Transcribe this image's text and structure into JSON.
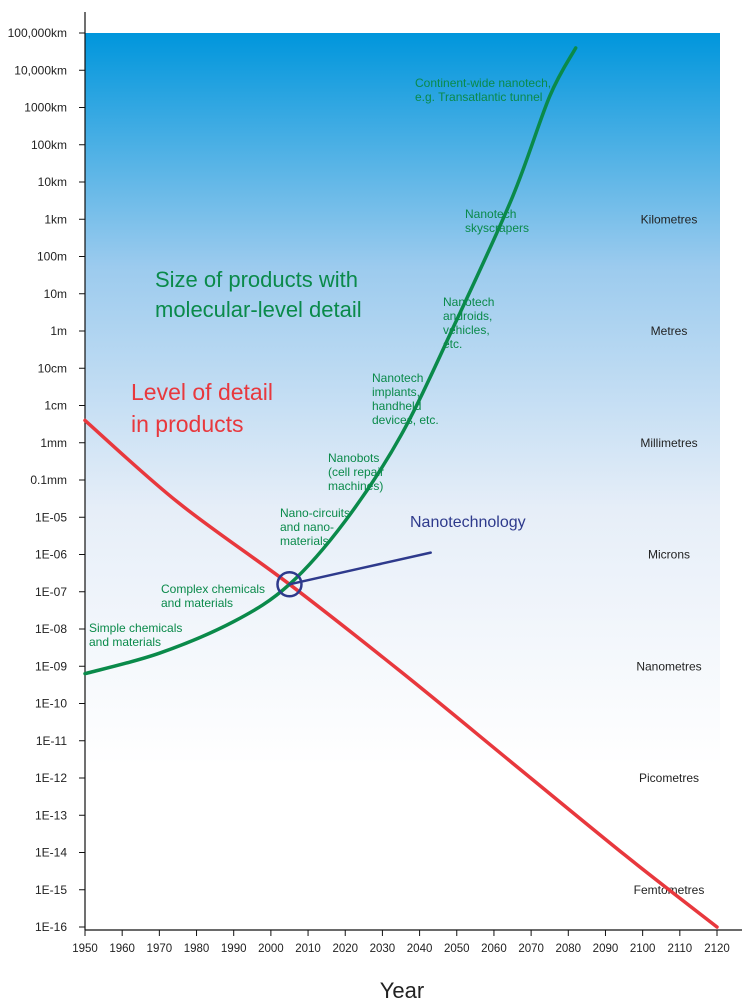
{
  "chart_data": {
    "type": "line",
    "xlabel": "Year",
    "x_ticks": [
      1950,
      1960,
      1970,
      1980,
      1990,
      2000,
      2010,
      2020,
      2030,
      2040,
      2050,
      2060,
      2070,
      2080,
      2090,
      2100,
      2110,
      2120
    ],
    "xlim": [
      1950,
      2120
    ],
    "y_scale": "log",
    "ylim_exponent_m": [
      -16,
      8
    ],
    "y_ticks": [
      "100,000km",
      "10,000km",
      "1000km",
      "100km",
      "10km",
      "1km",
      "100m",
      "10m",
      "1m",
      "10cm",
      "1cm",
      "1mm",
      "0.1mm",
      "1E-05",
      "1E-06",
      "1E-07",
      "1E-08",
      "1E-09",
      "1E-10",
      "1E-11",
      "1E-12",
      "1E-13",
      "1E-14",
      "1E-15",
      "1E-16"
    ],
    "scale_labels": [
      {
        "text": "Kilometres",
        "at": 3
      },
      {
        "text": "Metres",
        "at": 0
      },
      {
        "text": "Millimetres",
        "at": -3
      },
      {
        "text": "Microns",
        "at": -6
      },
      {
        "text": "Nanometres",
        "at": -9
      },
      {
        "text": "Picometres",
        "at": -12
      },
      {
        "text": "Femtometres",
        "at": -15
      }
    ],
    "series": [
      {
        "name": "Size of products with molecular-level detail",
        "color": "#0a8a4a",
        "points": [
          [
            1950,
            -9.2
          ],
          [
            1970,
            -8.65
          ],
          [
            1990,
            -7.8
          ],
          [
            2005,
            -6.8
          ],
          [
            2020,
            -5.1
          ],
          [
            2035,
            -2.8
          ],
          [
            2050,
            0.3
          ],
          [
            2065,
            3.6
          ],
          [
            2075,
            6.3
          ],
          [
            2082,
            7.6
          ]
        ]
      },
      {
        "name": "Level of detail in products",
        "color": "#e8383d",
        "points": [
          [
            1950,
            -2.4
          ],
          [
            1975,
            -4.6
          ],
          [
            2005,
            -6.8
          ],
          [
            2035,
            -9.15
          ],
          [
            2065,
            -11.6
          ],
          [
            2095,
            -14.05
          ],
          [
            2120,
            -16
          ]
        ]
      },
      {
        "name": "Nanotechnology",
        "color": "#2e3a8c",
        "points": [
          [
            2005,
            -6.8
          ],
          [
            2043,
            -5.95
          ]
        ]
      }
    ],
    "marker": {
      "x": 2005,
      "y": -6.8,
      "label": "Nanotechnology"
    },
    "annotations": [
      {
        "lines": [
          "Continent-wide nanotech,",
          "e.g. Transatlantic tunnel"
        ]
      },
      {
        "lines": [
          "Nanotech",
          "skyscrapers"
        ]
      },
      {
        "lines": [
          "Nanotech",
          "androids,",
          "vehicles,",
          "etc."
        ]
      },
      {
        "lines": [
          "Nanotech",
          "implants,",
          "handheld",
          "devices, etc."
        ]
      },
      {
        "lines": [
          "Nanobots",
          "(cell repair",
          "machines)"
        ]
      },
      {
        "lines": [
          "Nano-circuits",
          "and nano-",
          "materials"
        ]
      },
      {
        "lines": [
          "Complex chemicals",
          "and materials"
        ]
      },
      {
        "lines": [
          "Simple chemicals",
          "and materials"
        ]
      }
    ],
    "title_green": [
      "Size of products with",
      "molecular-level detail"
    ],
    "title_red": [
      "Level of detail",
      "in products"
    ]
  }
}
